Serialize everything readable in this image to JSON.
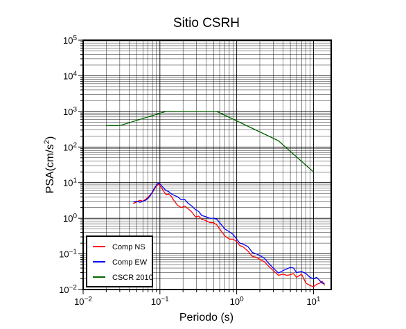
{
  "chart_data": {
    "type": "line",
    "title": "Sitio CSRH",
    "xlabel": "Periodo (s)",
    "ylabel_main": "PSA(cm/s",
    "ylabel_sup": "2",
    "ylabel_close": ")",
    "xscale": "log",
    "yscale": "log",
    "xlim": [
      0.01,
      17
    ],
    "ylim": [
      0.01,
      100000
    ],
    "grid": true,
    "legend_position": "bottom-left",
    "x_ticks": [
      {
        "value": 0.01,
        "base": "10",
        "exp": "−2"
      },
      {
        "value": 0.1,
        "base": "10",
        "exp": "−1"
      },
      {
        "value": 1,
        "base": "10",
        "exp": "0"
      },
      {
        "value": 10,
        "base": "10",
        "exp": "1"
      }
    ],
    "y_ticks": [
      {
        "value": 0.01,
        "base": "10",
        "exp": "−2"
      },
      {
        "value": 0.1,
        "base": "10",
        "exp": "−1"
      },
      {
        "value": 1,
        "base": "10",
        "exp": "0"
      },
      {
        "value": 10,
        "base": "10",
        "exp": "1"
      },
      {
        "value": 100,
        "base": "10",
        "exp": "2"
      },
      {
        "value": 1000,
        "base": "10",
        "exp": "3"
      },
      {
        "value": 10000,
        "base": "10",
        "exp": "4"
      },
      {
        "value": 100000,
        "base": "10",
        "exp": "5"
      }
    ],
    "series": [
      {
        "name": "Comp NS",
        "color": "#ff0000",
        "x": [
          0.045,
          0.05,
          0.055,
          0.06,
          0.065,
          0.07,
          0.075,
          0.08,
          0.085,
          0.09,
          0.095,
          0.1,
          0.11,
          0.12,
          0.13,
          0.14,
          0.15,
          0.17,
          0.19,
          0.21,
          0.23,
          0.26,
          0.29,
          0.32,
          0.35,
          0.4,
          0.45,
          0.5,
          0.55,
          0.6,
          0.7,
          0.8,
          0.9,
          1.0,
          1.1,
          1.2,
          1.4,
          1.6,
          1.8,
          2.0,
          2.3,
          2.6,
          3.0,
          3.5,
          4.0,
          4.5,
          5.0,
          5.5,
          6.0,
          7.0,
          8.0,
          9.0,
          10.0,
          11.0,
          12.0,
          13.0,
          14.0
        ],
        "y": [
          2.6,
          2.9,
          3.2,
          3.0,
          3.4,
          3.9,
          4.6,
          5.3,
          6.6,
          8.0,
          9.1,
          8.4,
          6.1,
          4.6,
          4.8,
          4.2,
          3.3,
          2.3,
          2.0,
          2.2,
          1.9,
          1.5,
          1.1,
          1.15,
          0.95,
          0.85,
          0.75,
          0.75,
          0.65,
          0.5,
          0.32,
          0.26,
          0.26,
          0.22,
          0.17,
          0.16,
          0.12,
          0.085,
          0.08,
          0.07,
          0.06,
          0.045,
          0.034,
          0.025,
          0.027,
          0.025,
          0.026,
          0.028,
          0.022,
          0.027,
          0.015,
          0.013,
          0.012,
          0.014,
          0.015,
          0.017,
          0.013
        ]
      },
      {
        "name": "Comp EW",
        "color": "#0000ff",
        "x": [
          0.045,
          0.05,
          0.055,
          0.06,
          0.065,
          0.07,
          0.075,
          0.08,
          0.085,
          0.09,
          0.095,
          0.1,
          0.11,
          0.12,
          0.13,
          0.14,
          0.15,
          0.17,
          0.19,
          0.21,
          0.23,
          0.26,
          0.29,
          0.32,
          0.35,
          0.4,
          0.45,
          0.5,
          0.55,
          0.6,
          0.7,
          0.8,
          0.9,
          1.0,
          1.1,
          1.2,
          1.4,
          1.6,
          1.8,
          2.0,
          2.3,
          2.6,
          3.0,
          3.5,
          4.0,
          4.5,
          5.0,
          5.5,
          6.0,
          7.0,
          8.0,
          9.0,
          10.0,
          11.0,
          12.0,
          13.0,
          14.0
        ],
        "y": [
          2.9,
          3.0,
          2.8,
          3.0,
          3.2,
          3.6,
          4.3,
          5.6,
          7.1,
          8.5,
          9.7,
          9.3,
          7.3,
          6.0,
          5.6,
          4.9,
          4.5,
          4.0,
          3.3,
          3.4,
          2.7,
          2.2,
          1.75,
          1.55,
          1.2,
          1.1,
          1.0,
          1.0,
          0.95,
          0.75,
          0.5,
          0.42,
          0.35,
          0.26,
          0.2,
          0.19,
          0.16,
          0.11,
          0.1,
          0.09,
          0.075,
          0.055,
          0.04,
          0.029,
          0.034,
          0.038,
          0.042,
          0.04,
          0.03,
          0.032,
          0.028,
          0.022,
          0.02,
          0.022,
          0.018,
          0.015,
          0.015
        ]
      },
      {
        "name": "CSCR 2010",
        "color": "#006400",
        "x": [
          0.02,
          0.03,
          0.12,
          0.55,
          3.5,
          10.0
        ],
        "y": [
          400,
          400,
          1000,
          1000,
          150,
          20
        ]
      }
    ]
  }
}
